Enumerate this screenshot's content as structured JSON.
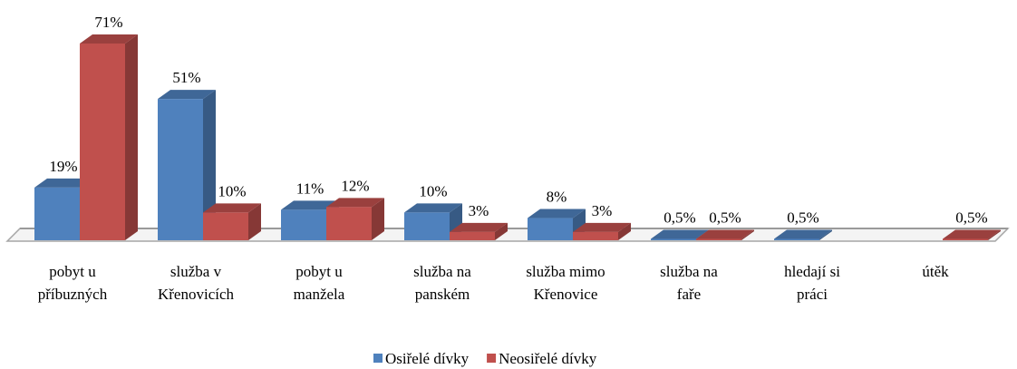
{
  "chart_data": {
    "type": "bar3d",
    "categories": [
      "pobyt u\npříbuzných",
      "služba v\nKřenovicích",
      "pobyt u\nmanžela",
      "služba na\npanském",
      "služba mimo\nKřenovice",
      "služba na\nfaře",
      "hledají si\npráci",
      "útěk"
    ],
    "series": [
      {
        "name": "Osiřelé dívky",
        "color": "#4f81bd",
        "values": [
          19,
          51,
          11,
          10,
          8,
          0.5,
          0.5,
          null
        ],
        "value_labels": [
          "19%",
          "51%",
          "11%",
          "10%",
          "8%",
          "0,5%",
          "0,5%",
          null
        ]
      },
      {
        "name": "Neosiřelé dívky",
        "color": "#c0504d",
        "values": [
          71,
          10,
          12,
          3,
          3,
          0.5,
          null,
          0.5
        ],
        "value_labels": [
          "71%",
          "10%",
          "12%",
          "3%",
          "3%",
          "0,5%",
          null,
          "0,5%"
        ]
      }
    ],
    "legend": "bottom"
  }
}
